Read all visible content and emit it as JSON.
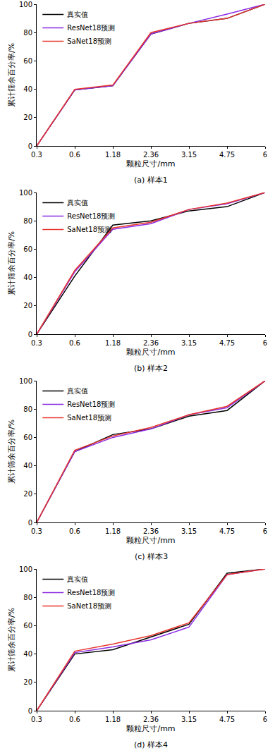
{
  "chart_data": [
    {
      "type": "line",
      "title": "(a) 样本1",
      "x_label": "颗粒尺寸/mm",
      "y_label": "累计筛余百分率/%",
      "categories": [
        "0.3",
        "0.6",
        "1.18",
        "2.36",
        "3.15",
        "4.75",
        "6"
      ],
      "series": [
        {
          "name": "真实值",
          "color": "#000000",
          "values": [
            0,
            39.5,
            42.5,
            79,
            86.5,
            90,
            100
          ]
        },
        {
          "name": "ResNet18预测",
          "color": "#8a2be2",
          "values": [
            0,
            39.5,
            42.5,
            79,
            86.5,
            93,
            100
          ]
        },
        {
          "name": "SaNet18预测",
          "color": "#e8352e",
          "values": [
            0,
            40,
            43,
            80,
            86.5,
            90,
            100
          ]
        }
      ],
      "ylim": [
        0,
        100
      ],
      "yticks": [
        0,
        20,
        40,
        60,
        80,
        100
      ],
      "grid": false,
      "legend": "top left"
    },
    {
      "type": "line",
      "title": "(b) 样本2",
      "x_label": "颗粒尺寸/mm",
      "y_label": "累计筛余百分率/%",
      "categories": [
        "0.3",
        "0.6",
        "1.18",
        "2.36",
        "3.15",
        "4.75",
        "6"
      ],
      "series": [
        {
          "name": "真实值",
          "color": "#000000",
          "values": [
            0,
            41,
            77,
            80,
            87,
            90,
            100
          ]
        },
        {
          "name": "ResNet18预测",
          "color": "#8a2be2",
          "values": [
            0,
            44,
            74,
            78,
            88,
            92,
            100
          ]
        },
        {
          "name": "SaNet18预测",
          "color": "#e8352e",
          "values": [
            0,
            45,
            75,
            79,
            88,
            92.5,
            100
          ]
        }
      ],
      "ylim": [
        0,
        100
      ],
      "yticks": [
        0,
        20,
        40,
        60,
        80,
        100
      ],
      "grid": false,
      "legend": "top left"
    },
    {
      "type": "line",
      "title": "(c) 样本3",
      "x_label": "颗粒尺寸/mm",
      "y_label": "累计筛余百分率/%",
      "categories": [
        "0.3",
        "0.6",
        "1.18",
        "2.36",
        "3.15",
        "4.75",
        "6"
      ],
      "series": [
        {
          "name": "真实值",
          "color": "#000000",
          "values": [
            0,
            50,
            62,
            66,
            75,
            79,
            100
          ]
        },
        {
          "name": "ResNet18预测",
          "color": "#8a2be2",
          "values": [
            0,
            50,
            60,
            66,
            76,
            81,
            100
          ]
        },
        {
          "name": "SaNet18预测",
          "color": "#e8352e",
          "values": [
            0,
            51,
            61,
            67,
            76,
            82,
            100
          ]
        }
      ],
      "ylim": [
        0,
        100
      ],
      "yticks": [
        0,
        20,
        40,
        60,
        80,
        100
      ],
      "grid": false,
      "legend": "top left"
    },
    {
      "type": "line",
      "title": "(d) 样本4",
      "x_label": "颗粒尺寸/mm",
      "y_label": "累计筛余百分率/%",
      "categories": [
        "0.3",
        "0.6",
        "1.18",
        "2.36",
        "3.15",
        "4.75",
        "6"
      ],
      "series": [
        {
          "name": "真实值",
          "color": "#000000",
          "values": [
            0,
            40,
            43,
            52,
            61,
            97,
            100
          ]
        },
        {
          "name": "ResNet18预测",
          "color": "#8a2be2",
          "values": [
            0,
            41,
            45,
            50,
            59,
            96,
            100
          ]
        },
        {
          "name": "SaNet18预测",
          "color": "#e8352e",
          "values": [
            0,
            42,
            47,
            53,
            62,
            96,
            100
          ]
        }
      ],
      "ylim": [
        0,
        100
      ],
      "yticks": [
        0,
        20,
        40,
        60,
        80,
        100
      ],
      "grid": false,
      "legend": "top left"
    }
  ]
}
